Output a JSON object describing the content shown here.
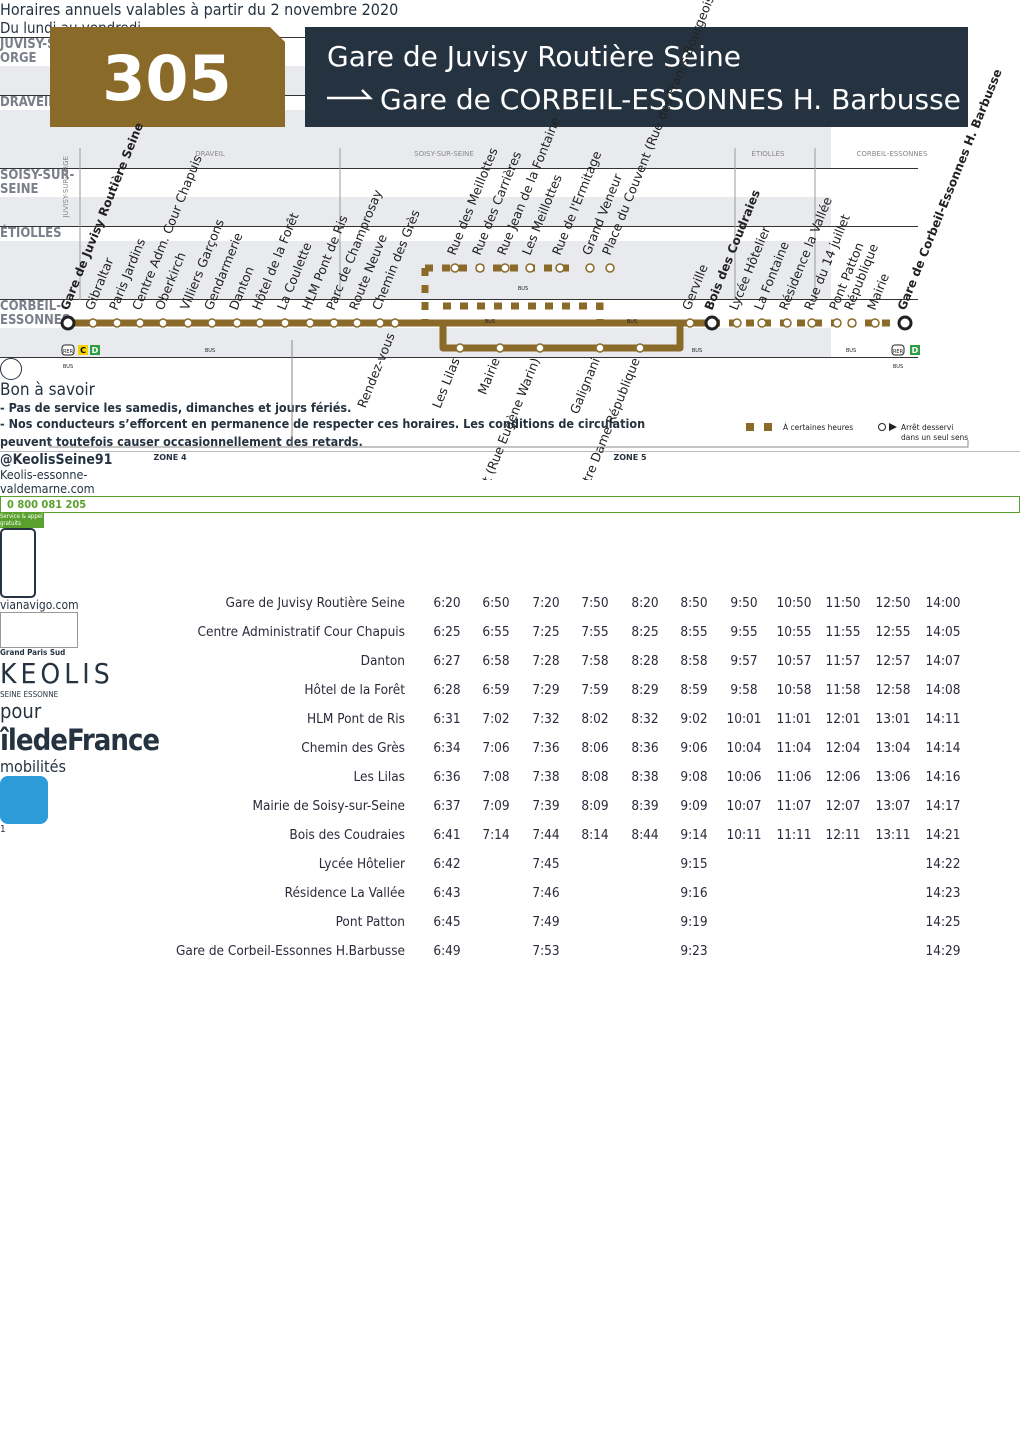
{
  "header": {
    "line": "305",
    "from": "Gare de Juvisy Routière Seine",
    "to": "Gare de CORBEIL-ESSONNES H. Barbusse"
  },
  "map": {
    "communes": [
      "JUVISY-SUR-ORGE",
      "DRAVEIL",
      "SOISY-SUR-SEINE",
      "ÉTIOLLES",
      "CORBEIL-ESSONNES"
    ],
    "stops_top": [
      "Gare de Juvisy Routière Seine",
      "Gibraltar",
      "Paris Jardins",
      "Centre Adm. Cour Chapuis",
      "Oberkirch",
      "Villiers Garçons",
      "Gendarmerie",
      "Danton",
      "Hôtel de la Forêt",
      "La Coulette",
      "HLM Pont de Ris",
      "Parc de Champrosay",
      "Route Neuve",
      "Chemin des Grès",
      "Rue des Meillottes",
      "Rue des Carrières",
      "Rue Jean de la Fontaine",
      "Les Meillottes",
      "Rue de l'Ermitage",
      "Grand Veneur",
      "Place du Couvent (Rue des Francs Bourgeois)",
      "Gerville",
      "Bois des Coudraies",
      "Lycée Hôtelier",
      "La Fontaine",
      "Résidence la Vallée",
      "Rue du 14 juillet",
      "Pont Patton",
      "République",
      "Mairie",
      "Gare de Corbeil-Essonnes H. Barbusse"
    ],
    "stops_bottom": [
      "Rendez-vous",
      "Les Lilas",
      "Mairie",
      "Place du Couvent (Rue Eugène Warin)",
      "Galignani",
      "Notre Dame République"
    ],
    "badges": {
      "rer": "RER",
      "c": "C",
      "d": "D",
      "bus": "BUS"
    },
    "legend": {
      "some_hours": "À certaines heures",
      "one_way": [
        "Arrêt desservi",
        "dans un seul sens"
      ]
    },
    "zones": [
      "ZONE 4",
      "ZONE 5"
    ]
  },
  "table": {
    "title": "Horaires annuels valables à partir du 2 novembre 2020",
    "days": "Du lundi au vendredi",
    "groups": [
      {
        "commune": "JUVISY-SUR-ORGE",
        "rows": [
          {
            "stop": "Gare de Juvisy Routière Seine",
            "times": [
              "6:20",
              "6:50",
              "7:20",
              "7:50",
              "8:20",
              "8:50",
              "9:50",
              "10:50",
              "11:50",
              "12:50",
              "14:00"
            ]
          }
        ]
      },
      {
        "commune": "DRAVEIL",
        "rows": [
          {
            "stop": "Centre Administratif Cour Chapuis",
            "times": [
              "6:25",
              "6:55",
              "7:25",
              "7:55",
              "8:25",
              "8:55",
              "9:55",
              "10:55",
              "11:55",
              "12:55",
              "14:05"
            ]
          },
          {
            "stop": "Danton",
            "times": [
              "6:27",
              "6:58",
              "7:28",
              "7:58",
              "8:28",
              "8:58",
              "9:57",
              "10:57",
              "11:57",
              "12:57",
              "14:07"
            ]
          },
          {
            "stop": "Hôtel de la Forêt",
            "times": [
              "6:28",
              "6:59",
              "7:29",
              "7:59",
              "8:29",
              "8:59",
              "9:58",
              "10:58",
              "11:58",
              "12:58",
              "14:08"
            ]
          },
          {
            "stop": "HLM Pont de Ris",
            "times": [
              "6:31",
              "7:02",
              "7:32",
              "8:02",
              "8:32",
              "9:02",
              "10:01",
              "11:01",
              "12:01",
              "13:01",
              "14:11"
            ]
          }
        ]
      },
      {
        "commune": "SOISY-SUR-SEINE",
        "rows": [
          {
            "stop": "Chemin des Grès",
            "times": [
              "6:34",
              "7:06",
              "7:36",
              "8:06",
              "8:36",
              "9:06",
              "10:04",
              "11:04",
              "12:04",
              "13:04",
              "14:14"
            ]
          },
          {
            "stop": "Les Lilas",
            "times": [
              "6:36",
              "7:08",
              "7:38",
              "8:08",
              "8:38",
              "9:08",
              "10:06",
              "11:06",
              "12:06",
              "13:06",
              "14:16"
            ]
          },
          {
            "stop": "Mairie de Soisy-sur-Seine",
            "times": [
              "6:37",
              "7:09",
              "7:39",
              "8:09",
              "8:39",
              "9:09",
              "10:07",
              "11:07",
              "12:07",
              "13:07",
              "14:17"
            ]
          }
        ]
      },
      {
        "commune": "ÉTIOLLES",
        "rows": [
          {
            "stop": "Bois des Coudraies",
            "times": [
              "6:41",
              "7:14",
              "7:44",
              "8:14",
              "8:44",
              "9:14",
              "10:11",
              "11:11",
              "12:11",
              "13:11",
              "14:21"
            ]
          },
          {
            "stop": "Lycée Hôtelier",
            "times": [
              "6:42",
              null,
              "7:45",
              null,
              null,
              "9:15",
              null,
              null,
              null,
              null,
              "14:22"
            ]
          },
          {
            "stop": "Résidence La Vallée",
            "times": [
              "6:43",
              null,
              "7:46",
              null,
              null,
              "9:16",
              null,
              null,
              null,
              null,
              "14:23"
            ]
          }
        ]
      },
      {
        "commune": "CORBEIL-ESSONNES",
        "rows": [
          {
            "stop": "Pont Patton",
            "times": [
              "6:45",
              null,
              "7:49",
              null,
              null,
              "9:19",
              null,
              null,
              null,
              null,
              "14:25"
            ]
          },
          {
            "stop": "Gare de Corbeil-Essonnes H.Barbusse",
            "times": [
              "6:49",
              null,
              "7:53",
              null,
              null,
              "9:23",
              null,
              null,
              null,
              null,
              "14:29"
            ]
          }
        ]
      }
    ]
  },
  "info": {
    "title": "Bon à savoir",
    "lines": [
      "- Pas de service les samedis, dimanches et jours fériés.",
      "- Nos conducteurs s’efforcent en permanence de respecter ces horaires. Les conditions de circulation peuvent toutefois causer occasionnellement des retards."
    ]
  },
  "footer": {
    "twitter": "@KeolisSeine91",
    "site": "Keolis-essonne-valdemarne.com",
    "phone": "0 800 081 205",
    "phone_note": "Service & appel gratuits",
    "navigo": "vianavigo.com",
    "gps": "Grand Paris Sud",
    "keolis": "KEOLIS",
    "keolis_sub": "SEINE ESSONNE",
    "pour": "pour",
    "idf": "îledeFrance",
    "idf_sub": "mobilités",
    "page": "1"
  }
}
